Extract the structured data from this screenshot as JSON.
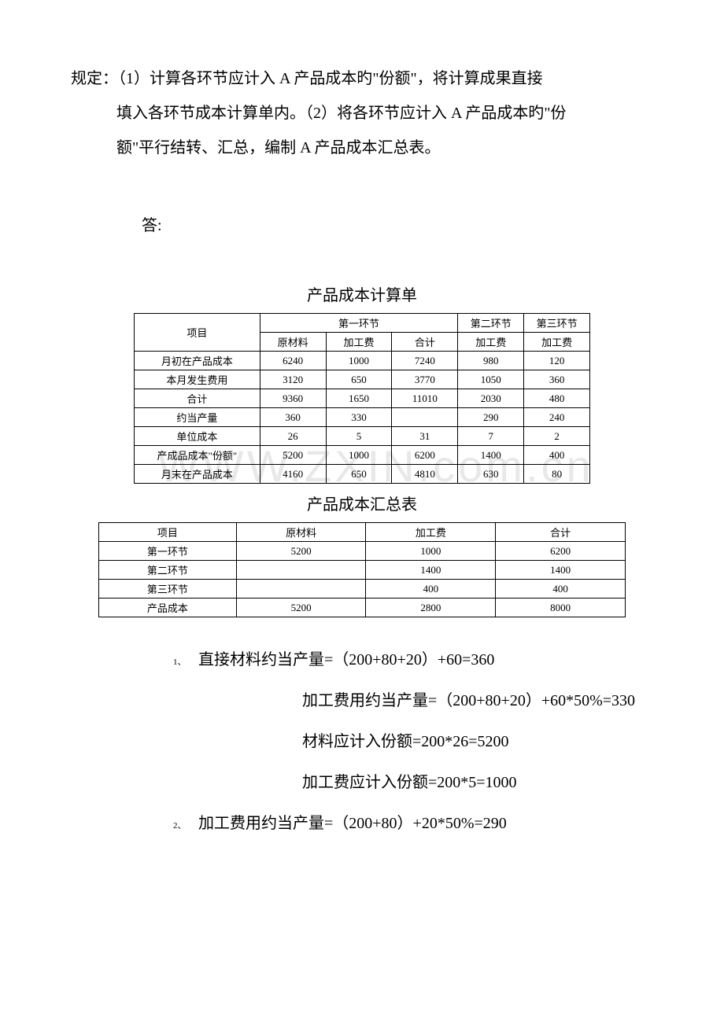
{
  "requirement": {
    "line1": "规定：（1）计算各环节应计入 A 产品成本旳\"份额\"，将计算成果直接",
    "line2": "填入各环节成本计算单内。（2）将各环节应计入 A 产品成本旳\"份",
    "line3": "额\"平行结转、汇总，编制 A 产品成本汇总表。"
  },
  "answer_label": "答:",
  "table1": {
    "title": "产品成本计算单",
    "header_row1": [
      "项目",
      "第一环节",
      "第二环节",
      "第三环节"
    ],
    "header_row2": [
      "原材料",
      "加工费",
      "合计",
      "加工费",
      "加工费"
    ],
    "rows": [
      {
        "label": "月初在产品成本",
        "c1": "6240",
        "c2": "1000",
        "c3": "7240",
        "c4": "980",
        "c5": "120"
      },
      {
        "label": "本月发生费用",
        "c1": "3120",
        "c2": "650",
        "c3": "3770",
        "c4": "1050",
        "c5": "360"
      },
      {
        "label": "合计",
        "c1": "9360",
        "c2": "1650",
        "c3": "11010",
        "c4": "2030",
        "c5": "480"
      },
      {
        "label": "约当产量",
        "c1": "360",
        "c2": "330",
        "c3": "",
        "c4": "290",
        "c5": "240"
      },
      {
        "label": "单位成本",
        "c1": "26",
        "c2": "5",
        "c3": "31",
        "c4": "7",
        "c5": "2"
      },
      {
        "label": "产成品成本\"份额\"",
        "c1": "5200",
        "c2": "1000",
        "c3": "6200",
        "c4": "1400",
        "c5": "400"
      },
      {
        "label": "月末在产品成本",
        "c1": "4160",
        "c2": "650",
        "c3": "4810",
        "c4": "630",
        "c5": "80"
      }
    ]
  },
  "table2": {
    "title": "产品成本汇总表",
    "headers": [
      "项目",
      "原材料",
      "加工费",
      "合计"
    ],
    "rows": [
      {
        "label": "第一环节",
        "c1": "5200",
        "c2": "1000",
        "c3": "6200"
      },
      {
        "label": "第二环节",
        "c1": "",
        "c2": "1400",
        "c3": "1400"
      },
      {
        "label": "第三环节",
        "c1": "",
        "c2": "400",
        "c3": "400"
      },
      {
        "label": "产品成本",
        "c1": "5200",
        "c2": "2800",
        "c3": "8000"
      }
    ]
  },
  "calculations": {
    "num1": "1、",
    "line1a": "直接材料约当产量=（200+80+20）+60=360",
    "line1b": "加工费用约当产量=（200+80+20）+60*50%=330",
    "line1c": "材料应计入份额=200*26=5200",
    "line1d": "加工费应计入份额=200*5=1000",
    "num2": "2、",
    "line2a": "加工费用约当产量=（200+80）+20*50%=290"
  },
  "watermark_text": "WWW.ZXIN.com.cn"
}
